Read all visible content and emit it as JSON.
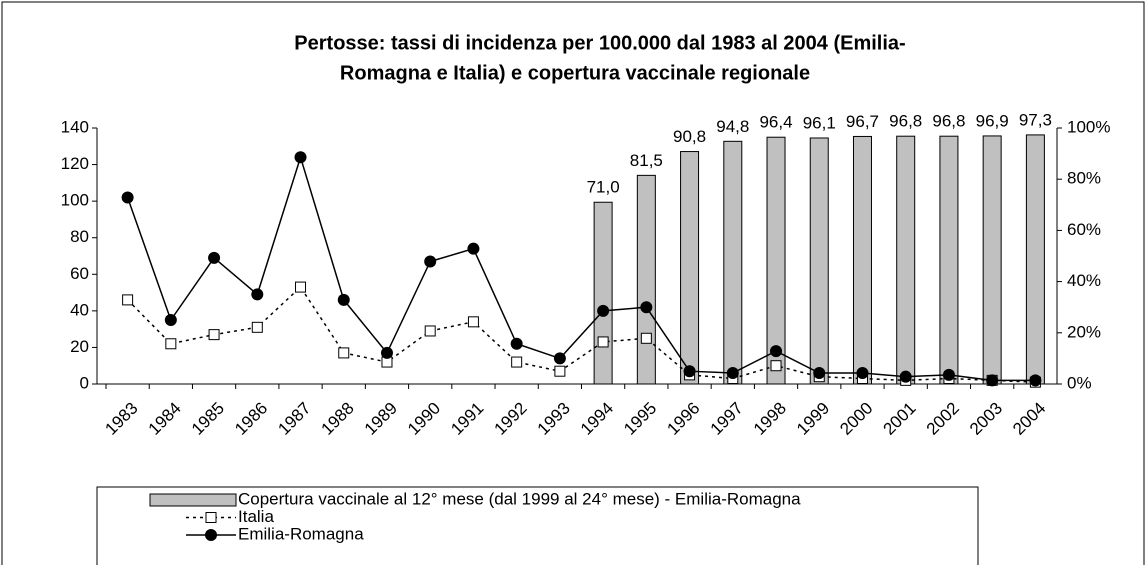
{
  "chart_data": {
    "type": "bar_line",
    "title": [
      "Pertosse: tassi di incidenza per 100.000 dal 1983 al 2004 (Emilia-",
      "Romagna e Italia) e copertura vaccinale regionale"
    ],
    "categories": [
      "1983",
      "1984",
      "1985",
      "1986",
      "1987",
      "1988",
      "1989",
      "1990",
      "1991",
      "1992",
      "1993",
      "1994",
      "1995",
      "1996",
      "1997",
      "1998",
      "1999",
      "2000",
      "2001",
      "2002",
      "2003",
      "2004"
    ],
    "series": [
      {
        "name": "Copertura vaccinale al 12° mese (dal 1999 al 24° mese) - Emilia-Romagna",
        "type": "bar",
        "axis": "y2",
        "color": "#c0c0c0",
        "values": [
          null,
          null,
          null,
          null,
          null,
          null,
          null,
          null,
          null,
          null,
          null,
          71.0,
          81.5,
          90.8,
          94.8,
          96.4,
          96.1,
          96.7,
          96.8,
          96.8,
          96.9,
          97.3
        ],
        "value_labels": [
          null,
          null,
          null,
          null,
          null,
          null,
          null,
          null,
          null,
          null,
          null,
          "71,0",
          "81,5",
          "90,8",
          "94,8",
          "96,4",
          "96,1",
          "96,7",
          "96,8",
          "96,8",
          "96,9",
          "97,3"
        ]
      },
      {
        "name": "Italia",
        "type": "line",
        "dash": true,
        "marker": "square",
        "color": "#000000",
        "values": [
          46,
          22,
          27,
          31,
          53,
          17,
          12,
          29,
          34,
          12,
          7,
          23,
          25,
          5,
          3,
          10,
          4,
          3,
          2,
          3,
          2,
          1
        ]
      },
      {
        "name": "Emilia-Romagna",
        "type": "line",
        "dash": false,
        "marker": "circle",
        "color": "#000000",
        "values": [
          102,
          35,
          69,
          49,
          124,
          46,
          17,
          67,
          74,
          22,
          14,
          40,
          42,
          7,
          6,
          18,
          6,
          6,
          4,
          5,
          2,
          2
        ]
      }
    ],
    "ylim": [
      0,
      140
    ],
    "yticks": [
      0,
      20,
      40,
      60,
      80,
      100,
      120,
      140
    ],
    "y2lim": [
      0,
      100
    ],
    "y2ticks": [
      {
        "value": 0,
        "label": "0%"
      },
      {
        "value": 20,
        "label": "20%"
      },
      {
        "value": 40,
        "label": "40%"
      },
      {
        "value": 60,
        "label": "60%"
      },
      {
        "value": 80,
        "label": "80%"
      },
      {
        "value": 100,
        "label": "100%"
      }
    ]
  }
}
